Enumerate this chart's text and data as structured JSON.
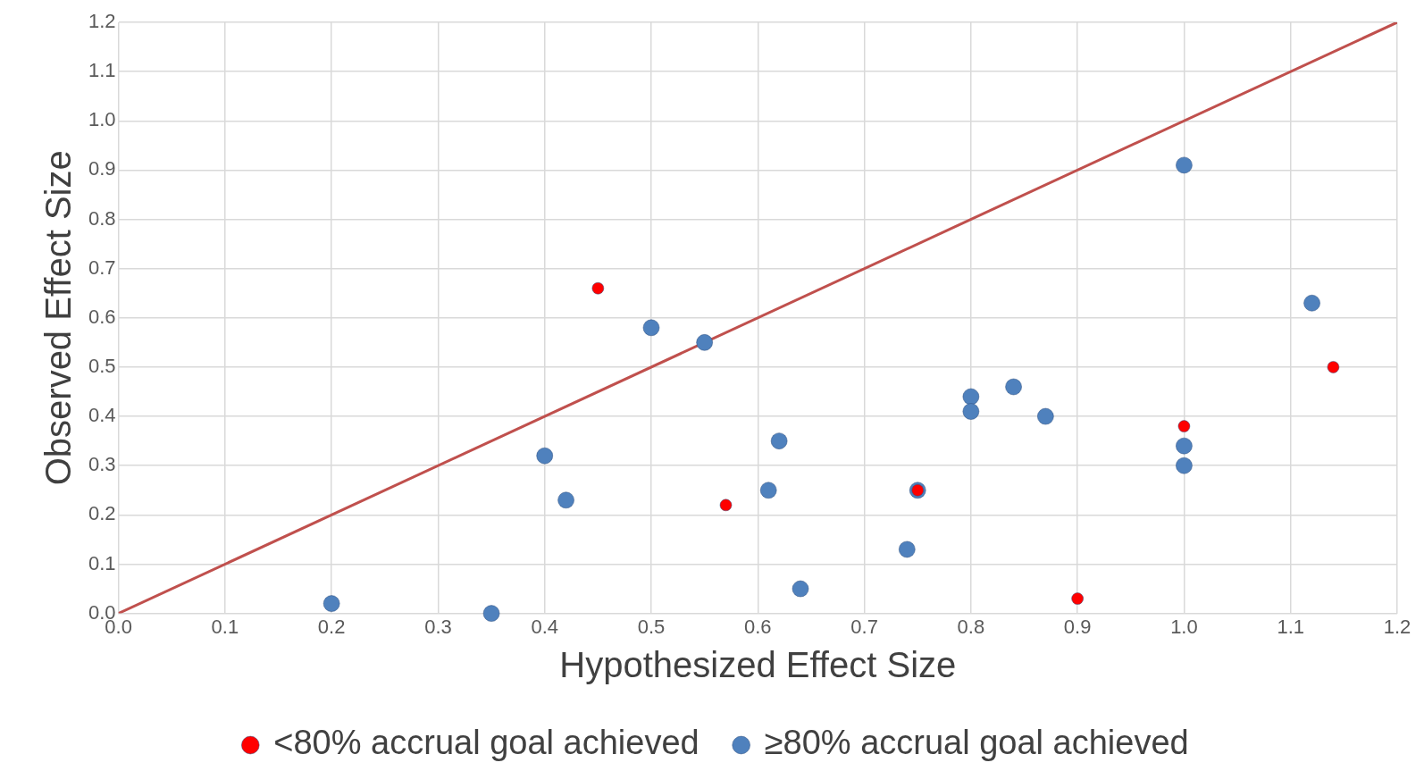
{
  "chart_data": {
    "type": "scatter",
    "xlabel": "Hypothesized Effect Size",
    "ylabel": "Observed Effect Size",
    "xlim": [
      0,
      1.2
    ],
    "ylim": [
      0,
      1.2
    ],
    "xticks": [
      {
        "value": 0,
        "label": "0.0"
      },
      {
        "value": 0.1,
        "label": "0.1"
      },
      {
        "value": 0.2,
        "label": "0.2"
      },
      {
        "value": 0.3,
        "label": "0.3"
      },
      {
        "value": 0.4,
        "label": "0.4"
      },
      {
        "value": 0.5,
        "label": "0.5"
      },
      {
        "value": 0.6,
        "label": "0.6"
      },
      {
        "value": 0.7,
        "label": "0.7"
      },
      {
        "value": 0.8,
        "label": "0.8"
      },
      {
        "value": 0.9,
        "label": "0.9"
      },
      {
        "value": 1,
        "label": "1.0"
      },
      {
        "value": 1.1,
        "label": "1.1"
      },
      {
        "value": 1.2,
        "label": "1.2"
      }
    ],
    "yticks": [
      {
        "value": 0,
        "label": "0.0"
      },
      {
        "value": 0.1,
        "label": "0.1"
      },
      {
        "value": 0.2,
        "label": "0.2"
      },
      {
        "value": 0.3,
        "label": "0.3"
      },
      {
        "value": 0.4,
        "label": "0.4"
      },
      {
        "value": 0.5,
        "label": "0.5"
      },
      {
        "value": 0.6,
        "label": "0.6"
      },
      {
        "value": 0.7,
        "label": "0.7"
      },
      {
        "value": 0.8,
        "label": "0.8"
      },
      {
        "value": 0.9,
        "label": "0.9"
      },
      {
        "value": 1,
        "label": "1.0"
      },
      {
        "value": 1.1,
        "label": "1.1"
      },
      {
        "value": 1.2,
        "label": "1.2"
      }
    ],
    "grid": true,
    "legend": "bottom",
    "series": [
      {
        "type": "line",
        "color": "#c0504d",
        "marker": "none",
        "x": [
          0,
          1.2
        ],
        "values": [
          0,
          1.2
        ]
      },
      {
        "name": "≥80% accrual goal achieved",
        "color": "#4f81bd",
        "marker": "circle",
        "x": [
          0.2,
          0.35,
          0.4,
          0.42,
          0.5,
          0.55,
          0.61,
          0.62,
          0.64,
          0.74,
          0.75,
          0.8,
          0.8,
          0.84,
          0.87,
          1.0,
          1.0,
          1.0,
          1.12
        ],
        "values": [
          0.02,
          0,
          0.32,
          0.23,
          0.58,
          0.55,
          0.25,
          0.35,
          0.05,
          0.13,
          0.25,
          0.44,
          0.41,
          0.46,
          0.4,
          0.91,
          0.34,
          0.3,
          0.63
        ]
      },
      {
        "name": "<80% accrual goal achieved",
        "color": "#ff0000",
        "marker": "circle",
        "x": [
          0.45,
          0.57,
          0.75,
          0.9,
          1.0,
          1.14
        ],
        "values": [
          0.66,
          0.22,
          0.25,
          0.03,
          0.38,
          0.5
        ]
      }
    ]
  }
}
